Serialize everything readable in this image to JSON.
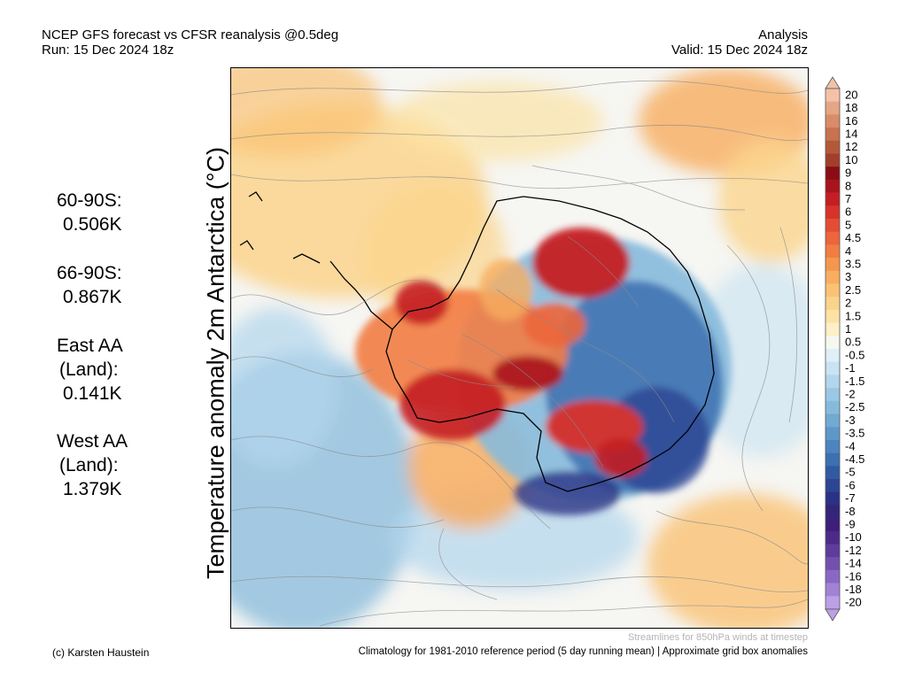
{
  "header": {
    "title_line1": "NCEP GFS forecast vs CFSR reanalysis @0.5deg",
    "title_line2": "Run: 15 Dec 2024 18z",
    "right_line1": "Analysis",
    "right_line2": "Valid: 15 Dec 2024 18z"
  },
  "stats": {
    "s1_label": "60-90S:",
    "s1_value": "0.506K",
    "s2_label": "66-90S:",
    "s2_value": "0.867K",
    "s3_label1": "East AA",
    "s3_label2": "(Land):",
    "s3_value": "0.141K",
    "s4_label1": "West AA",
    "s4_label2": "(Land):",
    "s4_value": "1.379K"
  },
  "map": {
    "ylabel": "Temperature anomaly 2m Antarctica (°C)"
  },
  "colorbar": {
    "labels": [
      "20",
      "18",
      "16",
      "14",
      "12",
      "10",
      "9",
      "8",
      "7",
      "6",
      "5",
      "4.5",
      "4",
      "3.5",
      "3",
      "2.5",
      "2",
      "1.5",
      "1",
      "0.5",
      "-0.5",
      "-1",
      "-1.5",
      "-2",
      "-2.5",
      "-3",
      "-3.5",
      "-4",
      "-4.5",
      "-5",
      "-6",
      "-7",
      "-8",
      "-9",
      "-10",
      "-12",
      "-14",
      "-16",
      "-18",
      "-20"
    ],
    "colors": [
      "#f3c2a8",
      "#e6a585",
      "#d98c68",
      "#c8724f",
      "#b5583a",
      "#a23e2a",
      "#8a0d16",
      "#a8141c",
      "#c41e24",
      "#d8332b",
      "#e44d33",
      "#ec653b",
      "#f27d44",
      "#f5964f",
      "#f8ad5f",
      "#fac274",
      "#fbd48c",
      "#fce2a5",
      "#fdf0c6",
      "#f7f7f1",
      "#dfeef7",
      "#c8e3f2",
      "#b2d6ec",
      "#9bc8e4",
      "#86badb",
      "#71aad2",
      "#5e98c8",
      "#4c85bd",
      "#3d70b0",
      "#325aa3",
      "#2c4594",
      "#2b3285",
      "#332578",
      "#3d1f7a",
      "#4d2a8a",
      "#5f3b9b",
      "#7450ae",
      "#8a68c2",
      "#a282d5",
      "#bba0e6"
    ]
  },
  "footer": {
    "left": "(c) Karsten Haustein",
    "streamlines_note": "Streamlines for 850hPa winds at timestep",
    "climatology_note": "Climatology for 1981-2010 reference period (5 day running mean) | Approximate grid box anomalies"
  }
}
